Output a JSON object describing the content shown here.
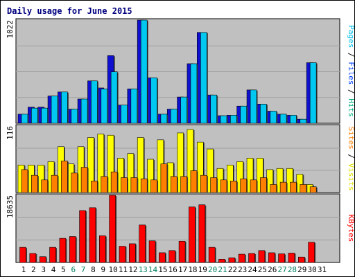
{
  "chart_data": {
    "type": "bar",
    "title": "Daily usage for June 2015",
    "categories": [
      "1",
      "2",
      "3",
      "4",
      "5",
      "6",
      "7",
      "8",
      "9",
      "10",
      "11",
      "12",
      "13",
      "14",
      "15",
      "16",
      "17",
      "18",
      "19",
      "20",
      "21",
      "22",
      "23",
      "24",
      "25",
      "26",
      "27",
      "28",
      "29",
      "30",
      "31"
    ],
    "weekend_days": [
      6,
      7,
      13,
      14,
      20,
      21,
      27,
      28
    ],
    "panels": [
      {
        "id": "hits",
        "ymax_label": "1022",
        "ymax": 1022,
        "right_label": [
          {
            "text": "Pages",
            "color": "#00bfe8"
          },
          {
            "text": " / ",
            "color": "#000000"
          },
          {
            "text": "Files",
            "color": "#0040ff"
          },
          {
            "text": " / ",
            "color": "#000000"
          },
          {
            "text": "Hits",
            "color": "#00b080"
          }
        ],
        "series": [
          {
            "color": "#1010d0",
            "values": [
              90,
              160,
              160,
              270,
              310,
              140,
              240,
              420,
              350,
              670,
              180,
              340,
              1022,
              450,
              90,
              140,
              260,
              590,
              900,
              280,
              75,
              80,
              170,
              330,
              190,
              120,
              90,
              80,
              40,
              600,
              0
            ]
          },
          {
            "color": "#00c8f0",
            "values": [
              90,
              150,
              150,
              270,
              310,
              140,
              240,
              420,
              340,
              510,
              180,
              340,
              1022,
              450,
              90,
              140,
              260,
              590,
              900,
              280,
              75,
              80,
              170,
              330,
              190,
              120,
              90,
              80,
              40,
              600,
              0
            ]
          }
        ]
      },
      {
        "id": "visits",
        "ymax_label": "116",
        "ymax": 116,
        "right_label": [
          {
            "text": "Sites",
            "color": "#ff8000"
          },
          {
            "text": " / ",
            "color": "#000000"
          },
          {
            "text": "Visits",
            "color": "#e0e000"
          }
        ],
        "series": [
          {
            "color": "#ffff00",
            "values": [
              48,
              48,
              48,
              54,
              80,
              50,
              80,
              96,
              102,
              100,
              60,
              68,
              96,
              58,
              92,
              52,
              104,
              110,
              88,
              76,
              42,
              48,
              54,
              60,
              60,
              40,
              42,
              42,
              32,
              14,
              0
            ]
          },
          {
            "color": "#ff8000",
            "values": [
              40,
              30,
              22,
              30,
              55,
              34,
              44,
              20,
              28,
              36,
              26,
              26,
              24,
              22,
              50,
              28,
              28,
              38,
              30,
              26,
              22,
              20,
              24,
              22,
              26,
              14,
              18,
              18,
              14,
              10,
              0
            ]
          }
        ]
      },
      {
        "id": "kbytes",
        "ymax_label": "18635",
        "ymax": 18635,
        "right_label": [
          {
            "text": "KBytes",
            "color": "#ff0000"
          }
        ],
        "series": [
          {
            "color": "#ff0000",
            "values": [
              4200,
              2500,
              1600,
              4200,
              6700,
              7200,
              14400,
              15200,
              7400,
              18635,
              4500,
              5200,
              10400,
              6000,
              2700,
              3300,
              5900,
              15400,
              16000,
              4200,
              900,
              1300,
              2300,
              2500,
              3300,
              2700,
              2400,
              2600,
              1500,
              5600,
              0
            ]
          }
        ]
      }
    ]
  }
}
